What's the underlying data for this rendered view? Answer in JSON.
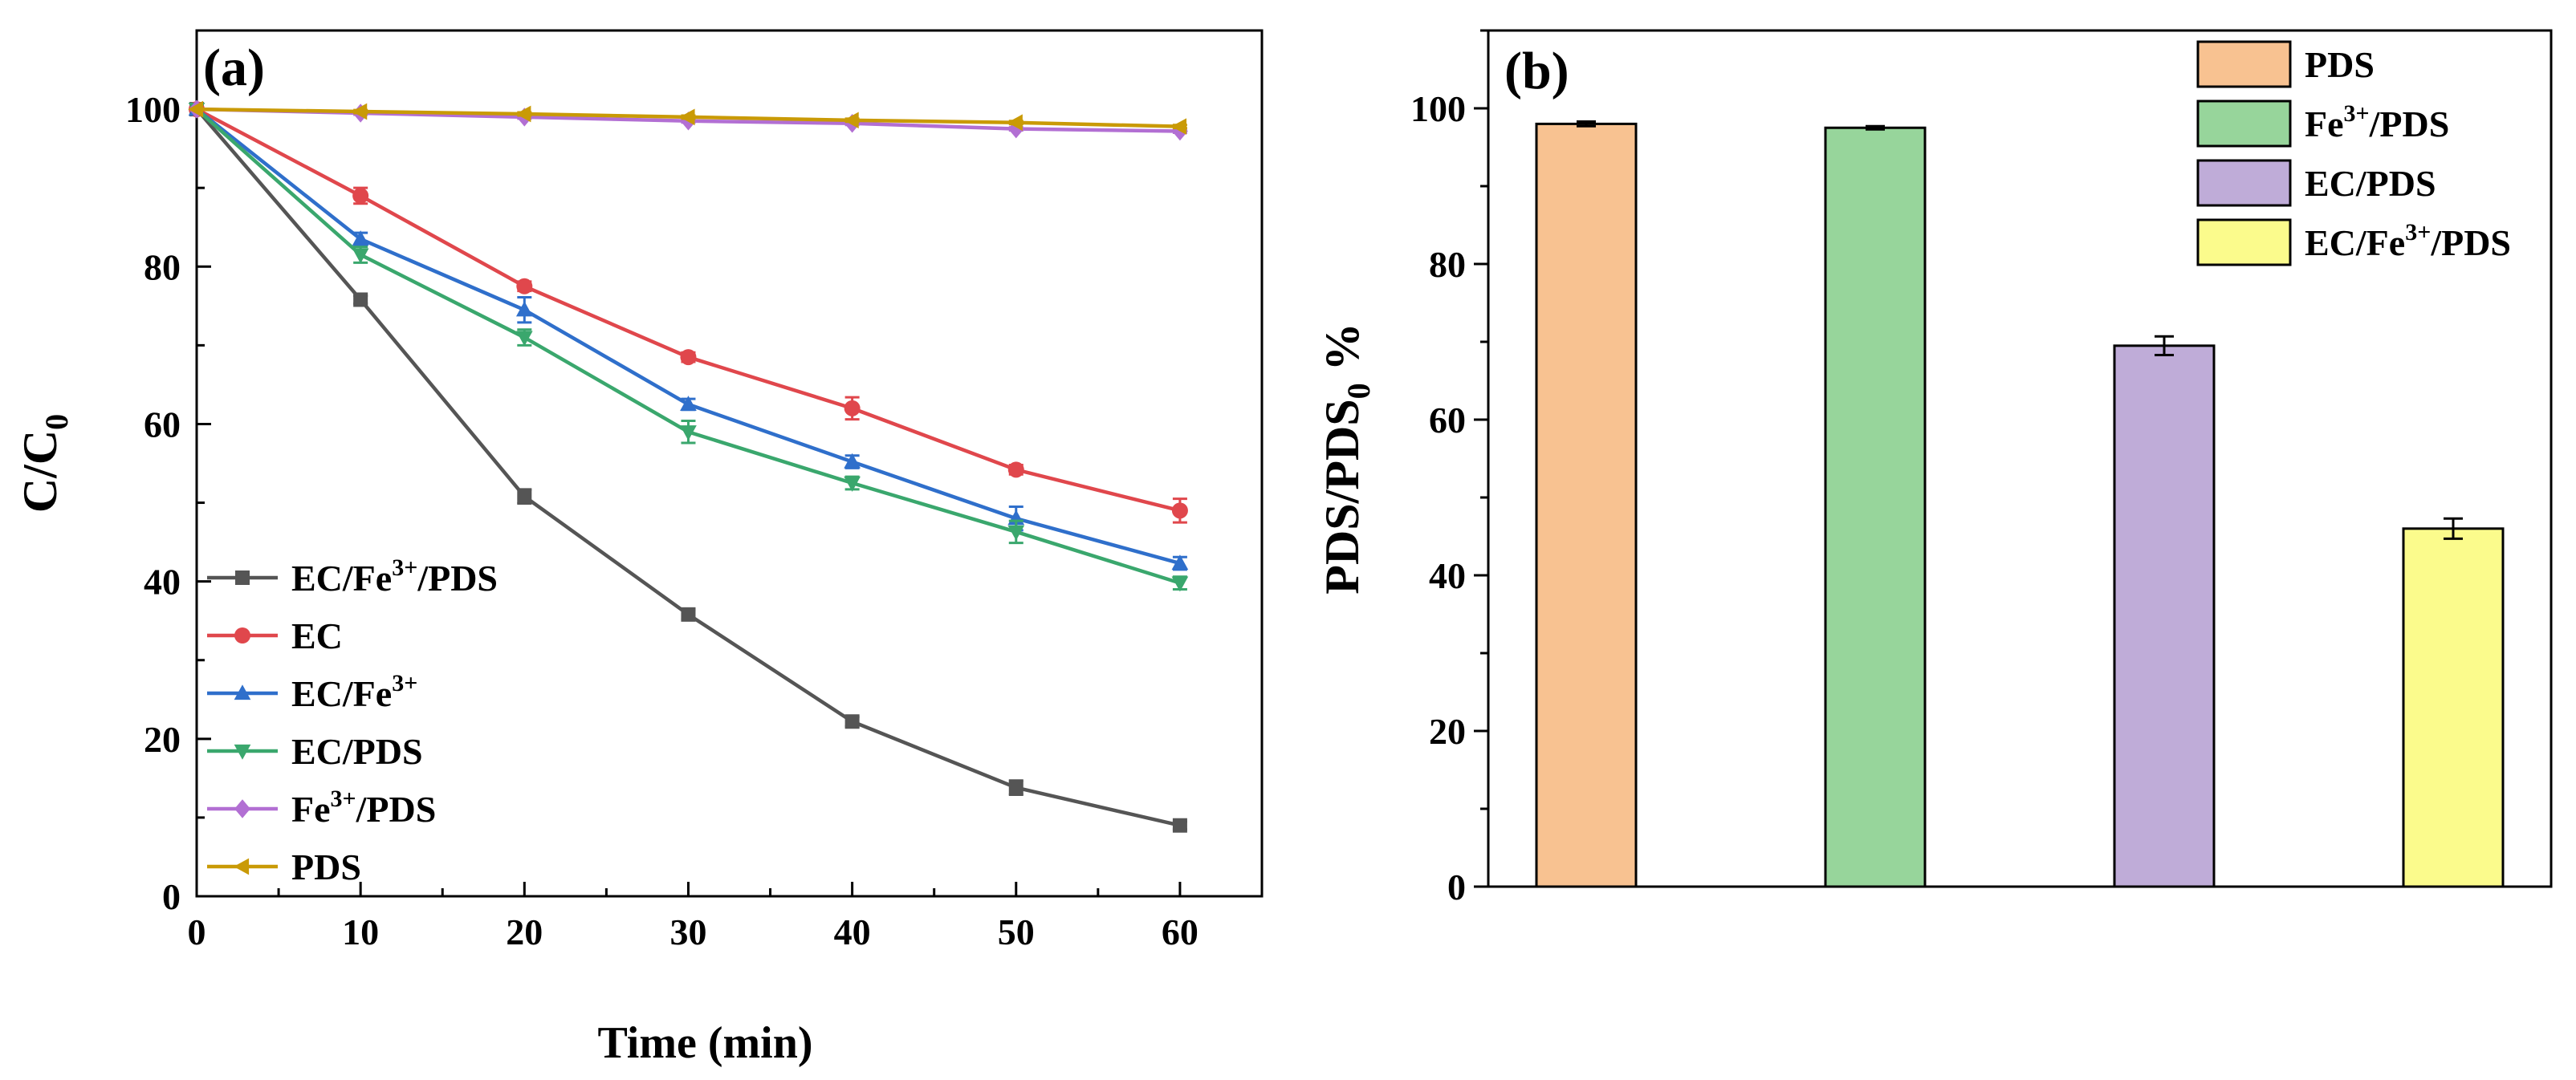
{
  "chart_data": [
    {
      "type": "line",
      "panel_label": "(a)",
      "xlabel": "Time (min)",
      "ylabel": {
        "base": "C/C",
        "sub": "0"
      },
      "xlim": [
        0,
        65
      ],
      "ylim": [
        0,
        110
      ],
      "xticks": [
        "0",
        "10",
        "20",
        "30",
        "40",
        "50",
        "60"
      ],
      "yticks": [
        "0",
        "20",
        "40",
        "60",
        "80",
        "100"
      ],
      "x": [
        0,
        10,
        20,
        30,
        40,
        50,
        60
      ],
      "legend_position": "lower-left",
      "series": [
        {
          "name": "EC/Fe3+/PDS",
          "label": {
            "base": "EC/Fe",
            "sup": "3+",
            "tail": "/PDS"
          },
          "marker": "square",
          "color": "#555555",
          "values": [
            100,
            75.8,
            50.8,
            35.8,
            22.2,
            13.8,
            9.0
          ],
          "errors": [
            0,
            0.5,
            0.9,
            0.6,
            0.6,
            0.9,
            0.5
          ]
        },
        {
          "name": "EC",
          "label": {
            "base": "EC",
            "sup": "",
            "tail": ""
          },
          "marker": "circle",
          "color": "#e0474c",
          "values": [
            100,
            89.0,
            77.5,
            68.5,
            62.0,
            54.2,
            49.0
          ],
          "errors": [
            0,
            1.0,
            0.6,
            0.6,
            1.4,
            0.6,
            1.5
          ]
        },
        {
          "name": "EC/Fe3+",
          "label": {
            "base": "EC/Fe",
            "sup": "3+",
            "tail": ""
          },
          "marker": "triangle-up",
          "color": "#2f6fcb",
          "values": [
            100,
            83.5,
            74.5,
            62.5,
            55.2,
            48.0,
            42.3
          ],
          "errors": [
            0,
            0.8,
            1.6,
            0.7,
            0.8,
            1.5,
            0.8
          ]
        },
        {
          "name": "EC/PDS",
          "label": {
            "base": "EC/PDS",
            "sup": "",
            "tail": ""
          },
          "marker": "triangle-down",
          "color": "#3aa76d",
          "values": [
            100,
            81.5,
            71.0,
            59.0,
            52.5,
            46.3,
            39.8
          ],
          "errors": [
            0,
            1.0,
            1.0,
            1.4,
            0.8,
            1.4,
            0.8
          ]
        },
        {
          "name": "Fe3+/PDS",
          "label": {
            "base": "Fe",
            "sup": "3+",
            "tail": "/PDS"
          },
          "marker": "diamond",
          "color": "#b26fd3",
          "values": [
            100,
            99.5,
            99.0,
            98.5,
            98.2,
            97.5,
            97.2
          ],
          "errors": [
            0,
            0.2,
            0.2,
            0.2,
            0.2,
            0.2,
            0.2
          ]
        },
        {
          "name": "PDS",
          "label": {
            "base": "PDS",
            "sup": "",
            "tail": ""
          },
          "marker": "triangle-left",
          "color": "#c99a06",
          "values": [
            100,
            99.7,
            99.4,
            99.0,
            98.6,
            98.3,
            97.8
          ],
          "errors": [
            0,
            0.2,
            0.2,
            0.2,
            0.2,
            0.2,
            0.2
          ]
        }
      ]
    },
    {
      "type": "bar",
      "panel_label": "(b)",
      "xlabel": "",
      "ylabel": {
        "base": "PDS/PDS",
        "sub": "0",
        "tail": " %"
      },
      "ylim": [
        0,
        110
      ],
      "yticks": [
        "0",
        "20",
        "40",
        "60",
        "80",
        "100"
      ],
      "categories": [
        "PDS",
        "Fe3+/PDS",
        "EC/PDS",
        "EC/Fe3+/PDS"
      ],
      "values": [
        98.0,
        97.5,
        69.5,
        46.0
      ],
      "errors": [
        0.3,
        0.2,
        1.2,
        1.3
      ],
      "colors": [
        "#f8c291",
        "#97d59b",
        "#bfacd8",
        "#fbfb8c"
      ],
      "legend_position": "top-right",
      "legend": [
        {
          "base": "PDS",
          "sup": "",
          "tail": ""
        },
        {
          "base": "Fe",
          "sup": "3+",
          "tail": "/PDS"
        },
        {
          "base": "EC/PDS",
          "sup": "",
          "tail": ""
        },
        {
          "base": "EC/Fe",
          "sup": "3+",
          "tail": "/PDS"
        }
      ]
    }
  ]
}
